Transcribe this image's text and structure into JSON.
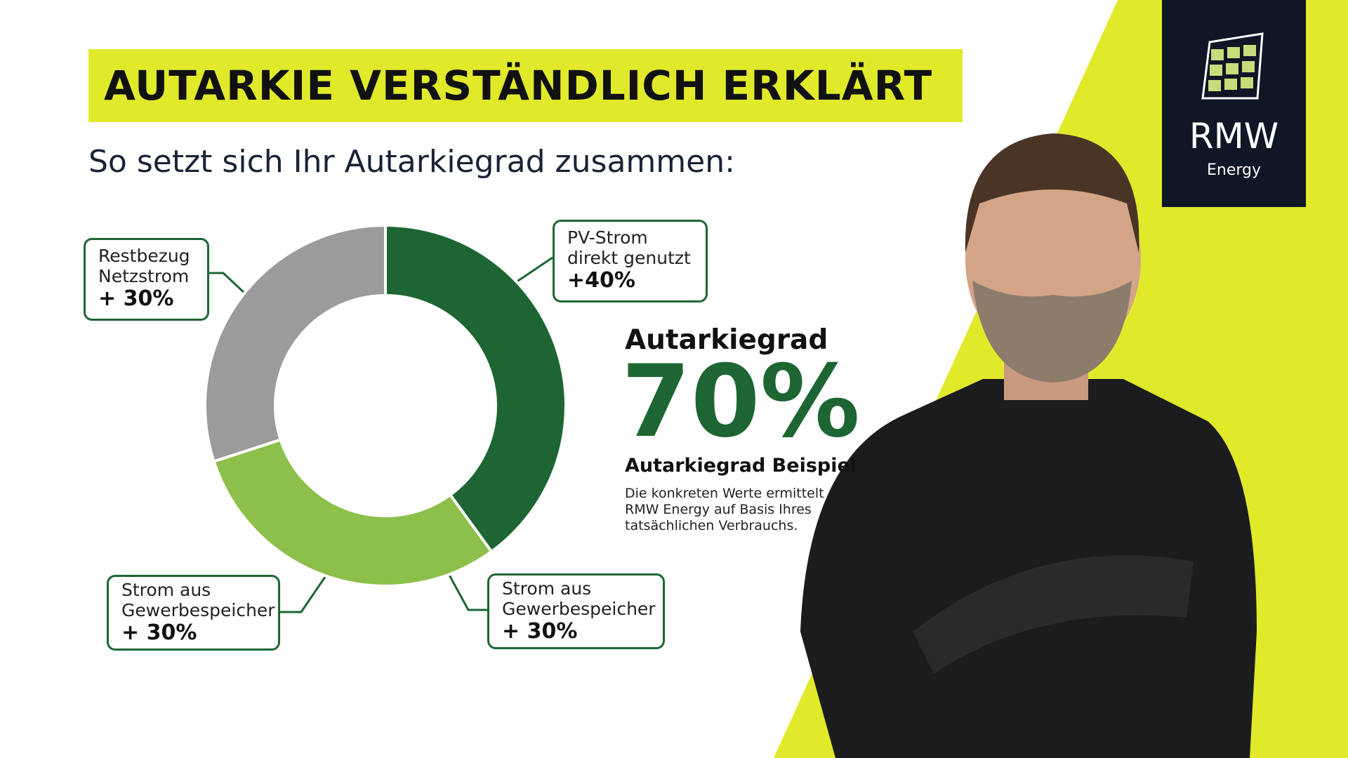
{
  "header": {
    "title": "AUTARKIE VERSTÄNDLICH ERKLÄRT",
    "subtitle": "So setzt sich Ihr Autarkiegrad zusammen:"
  },
  "chart_data": {
    "type": "donut",
    "categories": [
      "PV-Strom direkt genutzt",
      "Strom aus Gewerbespeicher",
      "Restbezug Netzstrom"
    ],
    "values": [
      40,
      30,
      30
    ],
    "value_labels": [
      "+40%",
      "+ 30%",
      "+ 30%"
    ],
    "colors": [
      "#1d6633",
      "#8dc04b",
      "#9b9b9b"
    ]
  },
  "summary": {
    "heading": "Autarkiegrad",
    "value_label": "70%",
    "caption": "Autarkiegrad Beispiel",
    "note": "Die konkreten Werte ermittelt RMW Energy auf Basis Ihres tatsächlichen Verbrauchs."
  },
  "logo": {
    "name": "RMW",
    "sub": "Energy"
  }
}
